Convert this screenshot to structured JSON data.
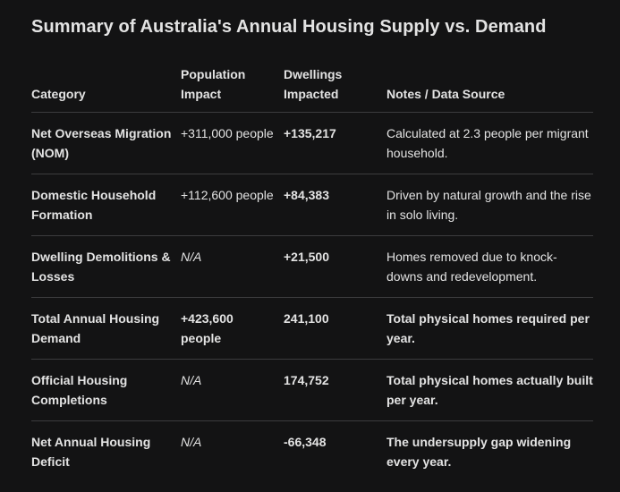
{
  "title": "Summary of Australia's Annual Housing Supply vs. Demand",
  "headers": {
    "category": "Category",
    "population": "Population Impact",
    "dwellings": "Dwellings Impacted",
    "notes": "Notes / Data Source"
  },
  "rows": [
    {
      "category": "Net Overseas Migration (NOM)",
      "population": "+311,000 people",
      "dwellings": "+135,217",
      "notes": "Calculated at 2.3 people per migrant household."
    },
    {
      "category": "Domestic Household Formation",
      "population": "+112,600 people",
      "dwellings": "+84,383",
      "notes": "Driven by natural growth and the rise in solo living."
    },
    {
      "category": "Dwelling Demolitions & Losses",
      "population": "N/A",
      "dwellings": "+21,500",
      "notes": "Homes removed due to knock-downs and redevelopment."
    },
    {
      "category": "Total Annual Housing Demand",
      "population": "+423,600 people",
      "dwellings": "241,100",
      "notes": "Total physical homes required per year."
    },
    {
      "category": "Official Housing Completions",
      "population": "N/A",
      "dwellings": "174,752",
      "notes": "Total physical homes actually built per year."
    },
    {
      "category": "Net Annual Housing Deficit",
      "population": "N/A",
      "dwellings": "-66,348",
      "notes": "The undersupply gap widening every year."
    }
  ]
}
